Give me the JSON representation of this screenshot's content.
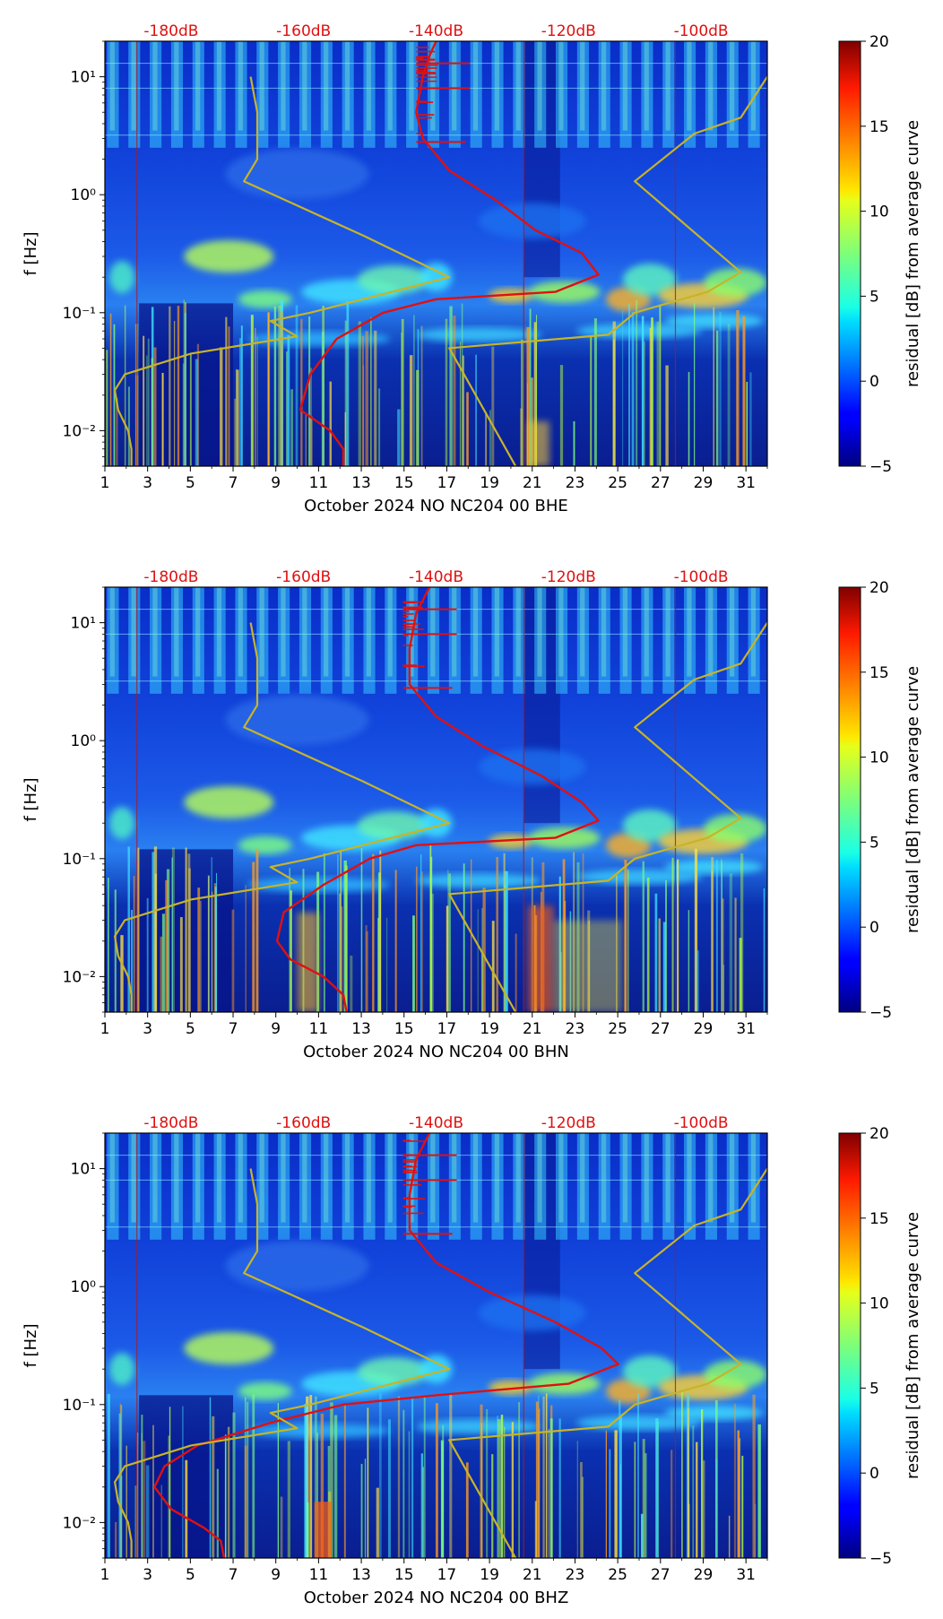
{
  "chart_data": [
    {
      "type": "heatmap",
      "xlabel": "October 2024 NO NC204 00 BHE",
      "ylabel": "f [Hz]",
      "x_ticks": [
        "1",
        "3",
        "5",
        "7",
        "9",
        "11",
        "13",
        "15",
        "17",
        "19",
        "21",
        "23",
        "25",
        "27",
        "29",
        "31"
      ],
      "y_ticks": [
        "10⁻²",
        "10⁻¹",
        "10⁰",
        "10¹"
      ],
      "top_axis_labels": [
        "-180dB",
        "-160dB",
        "-140dB",
        "-120dB",
        "-100dB"
      ],
      "x_range": [
        1,
        32
      ],
      "y_range_hz": [
        0.005,
        20
      ],
      "y_scale": "log",
      "top_axis_range_db": [
        -190,
        -90
      ],
      "colorbar": {
        "label": "residual [dB] from average curve",
        "ticks": [
          "−5",
          "0",
          "5",
          "10",
          "15",
          "20"
        ],
        "range": [
          -5,
          20
        ],
        "colormap": "jet"
      },
      "vertical_markers_day": [
        2.5,
        20.6,
        27.7
      ],
      "series": [
        {
          "color": "#e01010",
          "points_db_hz": [
            [
              -140,
              20
            ],
            [
              -141,
              15
            ],
            [
              -142,
              10
            ],
            [
              -143,
              5
            ],
            [
              -142,
              3
            ],
            [
              -138,
              1.6
            ],
            [
              -131,
              0.9
            ],
            [
              -125,
              0.5
            ],
            [
              -118,
              0.32
            ],
            [
              -115.5,
              0.21
            ],
            [
              -122,
              0.15
            ],
            [
              -140,
              0.13
            ],
            [
              -148,
              0.1
            ],
            [
              -155,
              0.06
            ],
            [
              -159,
              0.03
            ],
            [
              -160.5,
              0.015
            ],
            [
              -156,
              0.01
            ],
            [
              -154,
              0.007
            ],
            [
              -154,
              0.005
            ]
          ]
        },
        {
          "color": "#c8b428",
          "points_db_hz": [
            [
              -168,
              10
            ],
            [
              -167,
              5
            ],
            [
              -167,
              2
            ],
            [
              -169,
              1.3
            ],
            [
              -151,
              0.45
            ],
            [
              -138,
              0.2
            ],
            [
              -159,
              0.1
            ],
            [
              -165,
              0.085
            ],
            [
              -161,
              0.063
            ],
            [
              -177,
              0.045
            ],
            [
              -187,
              0.03
            ],
            [
              -188.5,
              0.022
            ],
            [
              -188,
              0.015
            ],
            [
              -186.5,
              0.01
            ],
            [
              -186,
              0.007
            ],
            [
              -186,
              0.005
            ]
          ]
        },
        {
          "color": "#c8b428",
          "points_db_hz": [
            [
              -90,
              10
            ],
            [
              -94,
              4.5
            ],
            [
              -101,
              3.3
            ],
            [
              -110,
              1.3
            ],
            [
              -94,
              0.22
            ],
            [
              -99,
              0.15
            ],
            [
              -110,
              0.1
            ],
            [
              -114,
              0.065
            ],
            [
              -138,
              0.05
            ],
            [
              -128,
              0.005
            ]
          ]
        }
      ]
    },
    {
      "type": "heatmap",
      "xlabel": "October 2024 NO NC204 00 BHN",
      "ylabel": "f [Hz]",
      "x_ticks": [
        "1",
        "3",
        "5",
        "7",
        "9",
        "11",
        "13",
        "15",
        "17",
        "19",
        "21",
        "23",
        "25",
        "27",
        "29",
        "31"
      ],
      "y_ticks": [
        "10⁻²",
        "10⁻¹",
        "10⁰",
        "10¹"
      ],
      "top_axis_labels": [
        "-180dB",
        "-160dB",
        "-140dB",
        "-120dB",
        "-100dB"
      ],
      "x_range": [
        1,
        32
      ],
      "y_range_hz": [
        0.005,
        20
      ],
      "y_scale": "log",
      "top_axis_range_db": [
        -190,
        -90
      ],
      "colorbar": {
        "label": "residual [dB] from average curve",
        "ticks": [
          "−5",
          "0",
          "5",
          "10",
          "15",
          "20"
        ],
        "range": [
          -5,
          20
        ],
        "colormap": "jet"
      },
      "vertical_markers_day": [
        2.5,
        20.6,
        27.7
      ],
      "series": [
        {
          "color": "#e01010",
          "points_db_hz": [
            [
              -141,
              20
            ],
            [
              -143,
              12
            ],
            [
              -144,
              6
            ],
            [
              -144,
              3
            ],
            [
              -140,
              1.6
            ],
            [
              -133,
              0.9
            ],
            [
              -124,
              0.5
            ],
            [
              -118,
              0.3
            ],
            [
              -115.5,
              0.21
            ],
            [
              -122,
              0.15
            ],
            [
              -143,
              0.13
            ],
            [
              -150,
              0.1
            ],
            [
              -157,
              0.06
            ],
            [
              -163,
              0.035
            ],
            [
              -164,
              0.02
            ],
            [
              -162,
              0.014
            ],
            [
              -157,
              0.01
            ],
            [
              -154,
              0.007
            ],
            [
              -153.5,
              0.005
            ]
          ]
        },
        {
          "color": "#c8b428",
          "points_db_hz": [
            [
              -168,
              10
            ],
            [
              -167,
              5
            ],
            [
              -167,
              2
            ],
            [
              -169,
              1.3
            ],
            [
              -151,
              0.45
            ],
            [
              -138,
              0.2
            ],
            [
              -159,
              0.1
            ],
            [
              -165,
              0.085
            ],
            [
              -161,
              0.063
            ],
            [
              -177,
              0.045
            ],
            [
              -187,
              0.03
            ],
            [
              -188.5,
              0.022
            ],
            [
              -188,
              0.015
            ],
            [
              -186.5,
              0.01
            ],
            [
              -186,
              0.007
            ],
            [
              -186,
              0.005
            ]
          ]
        },
        {
          "color": "#c8b428",
          "points_db_hz": [
            [
              -90,
              10
            ],
            [
              -94,
              4.5
            ],
            [
              -101,
              3.3
            ],
            [
              -110,
              1.3
            ],
            [
              -94,
              0.22
            ],
            [
              -99,
              0.15
            ],
            [
              -110,
              0.1
            ],
            [
              -114,
              0.065
            ],
            [
              -138,
              0.05
            ],
            [
              -128,
              0.005
            ]
          ]
        }
      ]
    },
    {
      "type": "heatmap",
      "xlabel": "October 2024 NO NC204 00 BHZ",
      "ylabel": "f [Hz]",
      "x_ticks": [
        "1",
        "3",
        "5",
        "7",
        "9",
        "11",
        "13",
        "15",
        "17",
        "19",
        "21",
        "23",
        "25",
        "27",
        "29",
        "31"
      ],
      "y_ticks": [
        "10⁻²",
        "10⁻¹",
        "10⁰",
        "10¹"
      ],
      "top_axis_labels": [
        "-180dB",
        "-160dB",
        "-140dB",
        "-120dB",
        "-100dB"
      ],
      "x_range": [
        1,
        32
      ],
      "y_range_hz": [
        0.005,
        20
      ],
      "y_scale": "log",
      "top_axis_range_db": [
        -190,
        -90
      ],
      "colorbar": {
        "label": "residual [dB] from average curve",
        "ticks": [
          "−5",
          "0",
          "5",
          "10",
          "15",
          "20"
        ],
        "range": [
          -5,
          20
        ],
        "colormap": "jet"
      },
      "vertical_markers_day": [
        2.5,
        20.6,
        27.7
      ],
      "series": [
        {
          "color": "#e01010",
          "points_db_hz": [
            [
              -141,
              20
            ],
            [
              -143,
              12
            ],
            [
              -144,
              6
            ],
            [
              -144,
              3
            ],
            [
              -140,
              1.6
            ],
            [
              -132,
              0.9
            ],
            [
              -122,
              0.5
            ],
            [
              -115,
              0.3
            ],
            [
              -112.5,
              0.22
            ],
            [
              -120,
              0.15
            ],
            [
              -140,
              0.12
            ],
            [
              -154,
              0.1
            ],
            [
              -165,
              0.07
            ],
            [
              -176,
              0.045
            ],
            [
              -181,
              0.03
            ],
            [
              -182.5,
              0.02
            ],
            [
              -180,
              0.013
            ],
            [
              -175,
              0.009
            ],
            [
              -172.5,
              0.007
            ],
            [
              -172,
              0.005
            ]
          ]
        },
        {
          "color": "#c8b428",
          "points_db_hz": [
            [
              -168,
              10
            ],
            [
              -167,
              5
            ],
            [
              -167,
              2
            ],
            [
              -169,
              1.3
            ],
            [
              -151,
              0.45
            ],
            [
              -138,
              0.2
            ],
            [
              -159,
              0.1
            ],
            [
              -165,
              0.085
            ],
            [
              -161,
              0.063
            ],
            [
              -177,
              0.045
            ],
            [
              -187,
              0.03
            ],
            [
              -188.5,
              0.022
            ],
            [
              -188,
              0.015
            ],
            [
              -186.5,
              0.01
            ],
            [
              -186,
              0.007
            ],
            [
              -186,
              0.005
            ]
          ]
        },
        {
          "color": "#c8b428",
          "points_db_hz": [
            [
              -90,
              10
            ],
            [
              -94,
              4.5
            ],
            [
              -101,
              3.3
            ],
            [
              -110,
              1.3
            ],
            [
              -94,
              0.22
            ],
            [
              -99,
              0.15
            ],
            [
              -110,
              0.1
            ],
            [
              -114,
              0.065
            ],
            [
              -138,
              0.05
            ],
            [
              -128,
              0.005
            ]
          ]
        }
      ]
    }
  ]
}
